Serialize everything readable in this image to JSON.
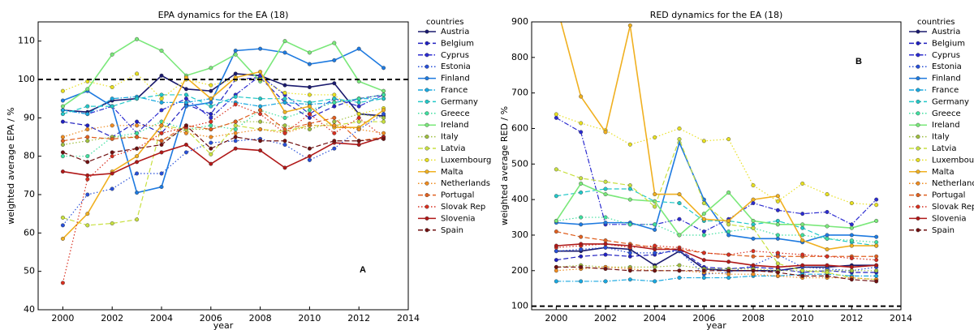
{
  "chart_data": [
    {
      "type": "line",
      "title": "EPA dynamics for the EA (18)",
      "x_label": "year",
      "y_label": "weighted average EPA / %",
      "annotation": "A",
      "legend_title": "countries",
      "reference_line": 100,
      "xlim": [
        1999,
        2014
      ],
      "xticks": [
        2000,
        2002,
        2004,
        2006,
        2008,
        2010,
        2012,
        2014
      ],
      "ylim": [
        40,
        115
      ],
      "yticks": [
        40,
        50,
        60,
        70,
        80,
        90,
        100,
        110
      ],
      "x": [
        2000,
        2001,
        2002,
        2003,
        2004,
        2005,
        2006,
        2007,
        2008,
        2009,
        2010,
        2011,
        2012,
        2013
      ],
      "series": [
        {
          "name": "Austria",
          "color": "#1a1a6e",
          "dash": "solid",
          "values": [
            92,
            91.5,
            94.5,
            95,
            101,
            97.5,
            97,
            101.5,
            101,
            98.5,
            98,
            99,
            91,
            90.5
          ]
        },
        {
          "name": "Belgium",
          "color": "#2020c0",
          "dash": "dashed",
          "values": [
            89,
            88,
            85,
            89,
            86,
            93.5,
            91,
            100,
            100.5,
            94,
            90,
            93,
            95,
            96
          ]
        },
        {
          "name": "Cyprus",
          "color": "#2b2bd0",
          "dash": "dashdot",
          "values": [
            92,
            91,
            93,
            86,
            92,
            95,
            90,
            96,
            101,
            96,
            91,
            95,
            93,
            96
          ]
        },
        {
          "name": "Estonia",
          "color": "#2850d8",
          "dash": "dotted",
          "values": [
            62,
            70,
            71.5,
            75.5,
            75.5,
            81,
            83.5,
            84,
            84.5,
            83,
            79,
            82,
            87,
            91
          ]
        },
        {
          "name": "Finland",
          "color": "#1e7ae0",
          "dash": "solid",
          "values": [
            94.5,
            97,
            93,
            70.5,
            72,
            93,
            94,
            107.5,
            108,
            107,
            104,
            105,
            108,
            103
          ]
        },
        {
          "name": "France",
          "color": "#19a8e0",
          "dash": "dashdot",
          "values": [
            92,
            91,
            95,
            95.5,
            94,
            94,
            95,
            94,
            93,
            94,
            93.5,
            94,
            95,
            95
          ]
        },
        {
          "name": "Germany",
          "color": "#22c8c8",
          "dash": "dashed",
          "values": [
            91,
            93,
            93,
            95,
            96,
            96,
            93,
            95.5,
            95,
            95,
            94,
            95,
            94,
            95
          ]
        },
        {
          "name": "Greece",
          "color": "#40e0a0",
          "dash": "dotted",
          "values": [
            80,
            80,
            85,
            86,
            89,
            87,
            88,
            87,
            92,
            90,
            92,
            94,
            95,
            96
          ]
        },
        {
          "name": "Ireland",
          "color": "#7ae87a",
          "dash": "solid",
          "values": [
            93,
            97.5,
            106.5,
            110.5,
            107.5,
            101,
            103,
            106.5,
            99.5,
            110,
            107,
            109.5,
            99.5,
            97
          ]
        },
        {
          "name": "Italy",
          "color": "#a0c040",
          "dash": "dotted",
          "values": [
            83,
            84,
            85,
            85,
            84,
            87,
            87,
            89,
            89,
            88,
            87,
            89,
            91,
            90
          ]
        },
        {
          "name": "Latvia",
          "color": "#c8e040",
          "dash": "dashed",
          "values": [
            64,
            62,
            62.5,
            63.5,
            88,
            87,
            80.5,
            88,
            87,
            86.5,
            88,
            88,
            89,
            89
          ]
        },
        {
          "name": "Luxembourg",
          "color": "#e8e020",
          "dash": "dotted",
          "values": [
            97,
            99.5,
            98,
            101.5,
            95,
            100,
            98.5,
            100,
            100,
            96.5,
            96,
            96,
            91,
            92.5
          ]
        },
        {
          "name": "Malta",
          "color": "#f0b020",
          "dash": "solid",
          "values": [
            58.5,
            65,
            76,
            80,
            88,
            100.5,
            95,
            100.5,
            102,
            91.5,
            93,
            87.5,
            87.5,
            92
          ]
        },
        {
          "name": "Netherlands",
          "color": "#f08c20",
          "dash": "dotted",
          "values": [
            85,
            87,
            88,
            88,
            88,
            86,
            85,
            86,
            87,
            86,
            88,
            88,
            87,
            86
          ]
        },
        {
          "name": "Portugal",
          "color": "#e06020",
          "dash": "dashed",
          "values": [
            84,
            85,
            84.5,
            85,
            84,
            88,
            87,
            89,
            92,
            87,
            88.5,
            90,
            84,
            85
          ]
        },
        {
          "name": "Slovak Rep",
          "color": "#d83020",
          "dash": "dotted",
          "values": [
            47,
            74,
            80,
            82,
            86,
            87.5,
            89,
            93.5,
            91,
            86,
            91,
            86,
            90,
            85
          ]
        },
        {
          "name": "Slovenia",
          "color": "#b01818",
          "dash": "solid",
          "values": [
            76,
            75,
            75.5,
            78.5,
            81,
            83,
            78,
            82,
            81.5,
            77,
            80,
            83.5,
            83,
            85
          ]
        },
        {
          "name": "Spain",
          "color": "#701010",
          "dash": "dashed",
          "values": [
            81,
            78.5,
            81,
            82,
            83,
            88,
            82,
            85,
            84,
            84,
            82,
            84,
            84,
            84.5
          ]
        }
      ]
    },
    {
      "type": "line",
      "title": "RED dynamics for the EA (18)",
      "x_label": "year",
      "y_label": "weighted average RED / %",
      "annotation": "B",
      "legend_title": "countries",
      "reference_line": 100,
      "xlim": [
        1999,
        2014
      ],
      "xticks": [
        2000,
        2002,
        2004,
        2006,
        2008,
        2010,
        2012,
        2014
      ],
      "ylim": [
        90,
        900
      ],
      "yticks": [
        100,
        200,
        300,
        400,
        500,
        600,
        700,
        800,
        900
      ],
      "x": [
        2000,
        2001,
        2002,
        2003,
        2004,
        2005,
        2006,
        2007,
        2008,
        2009,
        2010,
        2011,
        2012,
        2013
      ],
      "series": [
        {
          "name": "Austria",
          "color": "#1a1a6e",
          "dash": "solid",
          "values": [
            255,
            255,
            265,
            260,
            215,
            255,
            205,
            200,
            200,
            200,
            210,
            210,
            215,
            215
          ]
        },
        {
          "name": "Belgium",
          "color": "#2020c0",
          "dash": "dashed",
          "values": [
            230,
            240,
            245,
            240,
            245,
            260,
            210,
            205,
            210,
            205,
            195,
            200,
            195,
            195
          ]
        },
        {
          "name": "Cyprus",
          "color": "#2b2bd0",
          "dash": "dashdot",
          "values": [
            630,
            590,
            330,
            330,
            330,
            345,
            310,
            345,
            390,
            370,
            360,
            365,
            330,
            400
          ]
        },
        {
          "name": "Estonia",
          "color": "#2850d8",
          "dash": "dotted",
          "values": [
            255,
            260,
            265,
            250,
            250,
            255,
            190,
            195,
            215,
            245,
            210,
            205,
            200,
            210
          ]
        },
        {
          "name": "Finland",
          "color": "#1e7ae0",
          "dash": "solid",
          "values": [
            335,
            330,
            335,
            335,
            315,
            560,
            400,
            300,
            290,
            290,
            280,
            300,
            300,
            295
          ]
        },
        {
          "name": "France",
          "color": "#19a8e0",
          "dash": "dashdot",
          "values": [
            170,
            170,
            170,
            175,
            170,
            180,
            180,
            180,
            185,
            185,
            190,
            190,
            185,
            185
          ]
        },
        {
          "name": "Germany",
          "color": "#22c8c8",
          "dash": "dashed",
          "values": [
            410,
            420,
            430,
            430,
            395,
            390,
            340,
            340,
            330,
            340,
            320,
            290,
            280,
            270
          ]
        },
        {
          "name": "Greece",
          "color": "#40e0a0",
          "dash": "dotted",
          "values": [
            340,
            350,
            350,
            330,
            330,
            300,
            300,
            310,
            320,
            300,
            300,
            290,
            285,
            280
          ]
        },
        {
          "name": "Ireland",
          "color": "#7ae87a",
          "dash": "solid",
          "values": [
            340,
            445,
            415,
            400,
            395,
            300,
            360,
            420,
            340,
            330,
            330,
            325,
            320,
            340
          ]
        },
        {
          "name": "Italy",
          "color": "#a0c040",
          "dash": "dotted",
          "values": [
            210,
            215,
            210,
            210,
            210,
            215,
            205,
            205,
            205,
            200,
            200,
            200,
            200,
            200
          ]
        },
        {
          "name": "Latvia",
          "color": "#c8e040",
          "dash": "dashed",
          "values": [
            485,
            460,
            450,
            440,
            380,
            570,
            390,
            330,
            320,
            220,
            200,
            195,
            180,
            175
          ]
        },
        {
          "name": "Luxembourg",
          "color": "#e8e020",
          "dash": "dotted",
          "values": [
            640,
            615,
            595,
            555,
            575,
            600,
            565,
            570,
            440,
            395,
            445,
            415,
            390,
            385
          ]
        },
        {
          "name": "Malta",
          "color": "#f0b020",
          "dash": "solid",
          "values": [
            950,
            690,
            590,
            890,
            415,
            415,
            345,
            340,
            400,
            410,
            285,
            260,
            270,
            270
          ]
        },
        {
          "name": "Netherlands",
          "color": "#f08c20",
          "dash": "dotted",
          "values": [
            200,
            205,
            210,
            205,
            200,
            200,
            195,
            190,
            190,
            185,
            180,
            180,
            180,
            175
          ]
        },
        {
          "name": "Portugal",
          "color": "#e06020",
          "dash": "dashed",
          "values": [
            310,
            295,
            285,
            275,
            265,
            260,
            250,
            245,
            240,
            240,
            240,
            240,
            240,
            240
          ]
        },
        {
          "name": "Slovak Rep",
          "color": "#d83020",
          "dash": "dotted",
          "values": [
            265,
            270,
            275,
            265,
            270,
            265,
            250,
            245,
            255,
            250,
            245,
            240,
            235,
            230
          ]
        },
        {
          "name": "Slovenia",
          "color": "#b01818",
          "dash": "solid",
          "values": [
            270,
            275,
            275,
            270,
            260,
            260,
            230,
            225,
            215,
            210,
            215,
            215,
            210,
            215
          ]
        },
        {
          "name": "Spain",
          "color": "#701010",
          "dash": "dashed",
          "values": [
            210,
            210,
            205,
            200,
            200,
            200,
            200,
            200,
            200,
            195,
            185,
            185,
            175,
            170
          ]
        }
      ]
    }
  ]
}
